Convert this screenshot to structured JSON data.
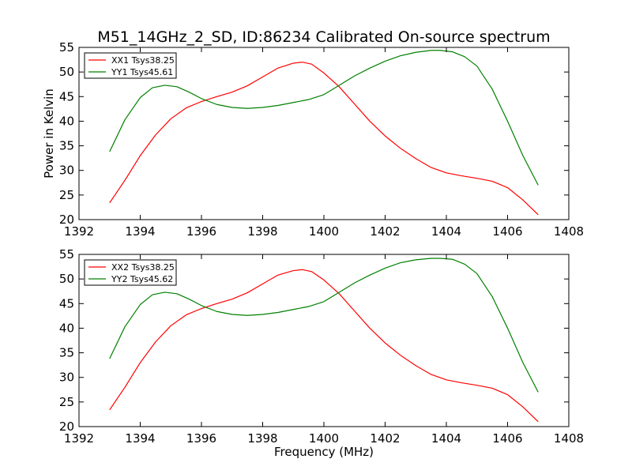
{
  "figure_title": "M51_14GHz_2_SD, ID:86234 Calibrated On-source spectrum",
  "chart_data": [
    {
      "type": "line",
      "title": "M51_14GHz_2_SD, ID:86234 Calibrated On-source spectrum",
      "xlabel": "",
      "ylabel": "Power in Kelvin",
      "xlim": [
        1392,
        1408
      ],
      "ylim": [
        20,
        55
      ],
      "xticks": [
        1392,
        1394,
        1396,
        1398,
        1400,
        1402,
        1404,
        1406,
        1408
      ],
      "yticks": [
        20,
        25,
        30,
        35,
        40,
        45,
        50,
        55
      ],
      "grid": false,
      "legend_position": "top-left",
      "series": [
        {
          "name": "XX1 Tsys38.25",
          "color": "#ff0000",
          "x": [
            1393.0,
            1393.5,
            1394.0,
            1394.5,
            1395.0,
            1395.5,
            1396.0,
            1396.5,
            1397.0,
            1397.5,
            1398.0,
            1398.5,
            1399.0,
            1399.3,
            1399.6,
            1400.0,
            1400.5,
            1401.0,
            1401.5,
            1402.0,
            1402.5,
            1403.0,
            1403.5,
            1404.0,
            1404.5,
            1405.0,
            1405.5,
            1406.0,
            1406.5,
            1407.0
          ],
          "y": [
            23.4,
            28.0,
            33.0,
            37.2,
            40.5,
            42.7,
            44.0,
            45.0,
            45.9,
            47.2,
            49.0,
            50.8,
            51.8,
            52.0,
            51.6,
            49.8,
            47.0,
            43.5,
            40.0,
            37.0,
            34.5,
            32.4,
            30.6,
            29.5,
            28.9,
            28.4,
            27.8,
            26.5,
            24.0,
            21.0
          ]
        },
        {
          "name": "YY1 Tsys45.61",
          "color": "#008000",
          "x": [
            1393.0,
            1393.5,
            1394.0,
            1394.4,
            1394.8,
            1395.2,
            1395.6,
            1396.0,
            1396.5,
            1397.0,
            1397.5,
            1398.0,
            1398.5,
            1399.0,
            1399.5,
            1400.0,
            1400.5,
            1401.0,
            1401.5,
            1402.0,
            1402.5,
            1403.0,
            1403.5,
            1403.8,
            1404.2,
            1404.6,
            1405.0,
            1405.5,
            1406.0,
            1406.5,
            1407.0
          ],
          "y": [
            33.8,
            40.3,
            44.8,
            46.8,
            47.3,
            47.0,
            45.9,
            44.6,
            43.4,
            42.8,
            42.6,
            42.8,
            43.2,
            43.8,
            44.4,
            45.4,
            47.3,
            49.2,
            50.8,
            52.2,
            53.3,
            54.0,
            54.4,
            54.4,
            54.1,
            53.1,
            51.2,
            46.5,
            40.0,
            33.0,
            27.0
          ]
        }
      ]
    },
    {
      "type": "line",
      "title": "",
      "xlabel": "Frequency (MHz)",
      "ylabel": "",
      "xlim": [
        1392,
        1408
      ],
      "ylim": [
        20,
        55
      ],
      "xticks": [
        1392,
        1394,
        1396,
        1398,
        1400,
        1402,
        1404,
        1406,
        1408
      ],
      "yticks": [
        20,
        25,
        30,
        35,
        40,
        45,
        50,
        55
      ],
      "grid": false,
      "legend_position": "top-left",
      "series": [
        {
          "name": "XX2 Tsys38.25",
          "color": "#ff0000",
          "x": [
            1393.0,
            1393.5,
            1394.0,
            1394.5,
            1395.0,
            1395.5,
            1396.0,
            1396.5,
            1397.0,
            1397.5,
            1398.0,
            1398.5,
            1399.0,
            1399.3,
            1399.6,
            1400.0,
            1400.5,
            1401.0,
            1401.5,
            1402.0,
            1402.5,
            1403.0,
            1403.5,
            1404.0,
            1404.5,
            1405.0,
            1405.5,
            1406.0,
            1406.5,
            1407.0
          ],
          "y": [
            23.4,
            28.0,
            33.0,
            37.2,
            40.5,
            42.7,
            44.0,
            45.0,
            45.9,
            47.2,
            49.0,
            50.8,
            51.7,
            51.9,
            51.5,
            49.8,
            47.0,
            43.5,
            40.0,
            37.0,
            34.5,
            32.4,
            30.6,
            29.5,
            28.9,
            28.4,
            27.8,
            26.5,
            24.0,
            21.0
          ]
        },
        {
          "name": "YY2 Tsys45.62",
          "color": "#008000",
          "x": [
            1393.0,
            1393.5,
            1394.0,
            1394.4,
            1394.8,
            1395.2,
            1395.6,
            1396.0,
            1396.5,
            1397.0,
            1397.5,
            1398.0,
            1398.5,
            1399.0,
            1399.5,
            1400.0,
            1400.5,
            1401.0,
            1401.5,
            1402.0,
            1402.5,
            1403.0,
            1403.5,
            1403.8,
            1404.2,
            1404.6,
            1405.0,
            1405.5,
            1406.0,
            1406.5,
            1407.0
          ],
          "y": [
            33.8,
            40.3,
            44.8,
            46.8,
            47.3,
            47.0,
            45.9,
            44.6,
            43.4,
            42.8,
            42.6,
            42.8,
            43.2,
            43.8,
            44.4,
            45.4,
            47.3,
            49.2,
            50.8,
            52.2,
            53.3,
            53.9,
            54.2,
            54.2,
            54.0,
            53.0,
            51.1,
            46.4,
            40.0,
            33.0,
            27.0
          ]
        }
      ]
    }
  ]
}
